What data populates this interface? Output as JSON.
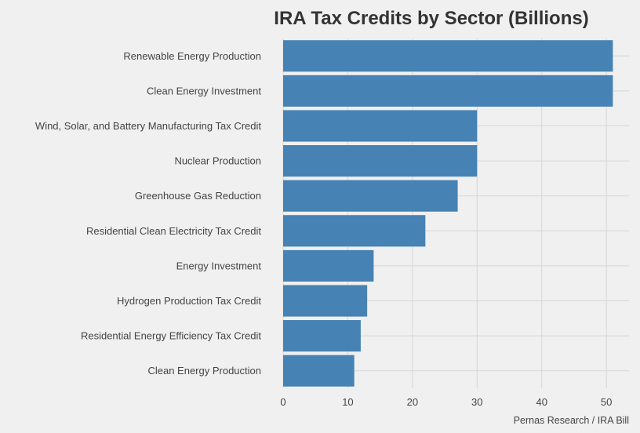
{
  "chart_data": {
    "type": "bar",
    "orientation": "horizontal",
    "title": "IRA Tax Credits by Sector (Billions)",
    "xlabel": "",
    "ylabel": "",
    "caption": "Pernas Research / IRA Bill",
    "categories": [
      "Renewable Energy Production",
      "Clean Energy Investment",
      "Wind, Solar, and Battery Manufacturing Tax Credit",
      "Nuclear Production",
      "Greenhouse Gas Reduction",
      "Residential Clean Electricity Tax Credit",
      "Energy Investment",
      "Hydrogen Production Tax Credit",
      "Residential Energy Efficiency Tax Credit",
      "Clean Energy Production"
    ],
    "values": [
      51,
      51,
      30,
      30,
      27,
      22,
      14,
      13,
      12,
      11
    ],
    "xlim": [
      0,
      53.5
    ],
    "xticks": [
      0,
      10,
      20,
      30,
      40,
      50
    ],
    "bar_color": "#4682b4",
    "grid": true
  }
}
